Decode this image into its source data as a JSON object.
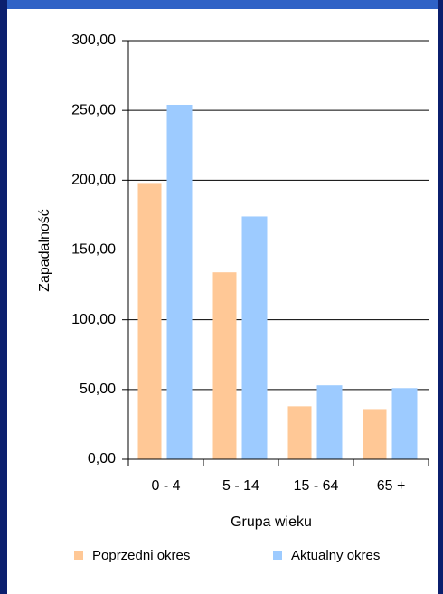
{
  "chart_data": {
    "type": "bar",
    "categories": [
      "0 - 4",
      "5 - 14",
      "15 - 64",
      "65 +"
    ],
    "series": [
      {
        "name": "Poprzedni okres",
        "color": "#ffc896",
        "values": [
          198,
          134,
          38,
          36
        ]
      },
      {
        "name": "Aktualny okres",
        "color": "#9dcbff",
        "values": [
          254,
          174,
          53,
          51
        ]
      }
    ],
    "ylabel": "Zapadalność",
    "xlabel": "Grupa wieku",
    "ylim": [
      0,
      300
    ],
    "yticks": [
      {
        "value": 0,
        "label": "0,00"
      },
      {
        "value": 50,
        "label": "50,00"
      },
      {
        "value": 100,
        "label": "100,00"
      },
      {
        "value": 150,
        "label": "150,00"
      },
      {
        "value": 200,
        "label": "200,00"
      },
      {
        "value": 250,
        "label": "250,00"
      },
      {
        "value": 300,
        "label": "300,00"
      }
    ],
    "grid": true
  }
}
